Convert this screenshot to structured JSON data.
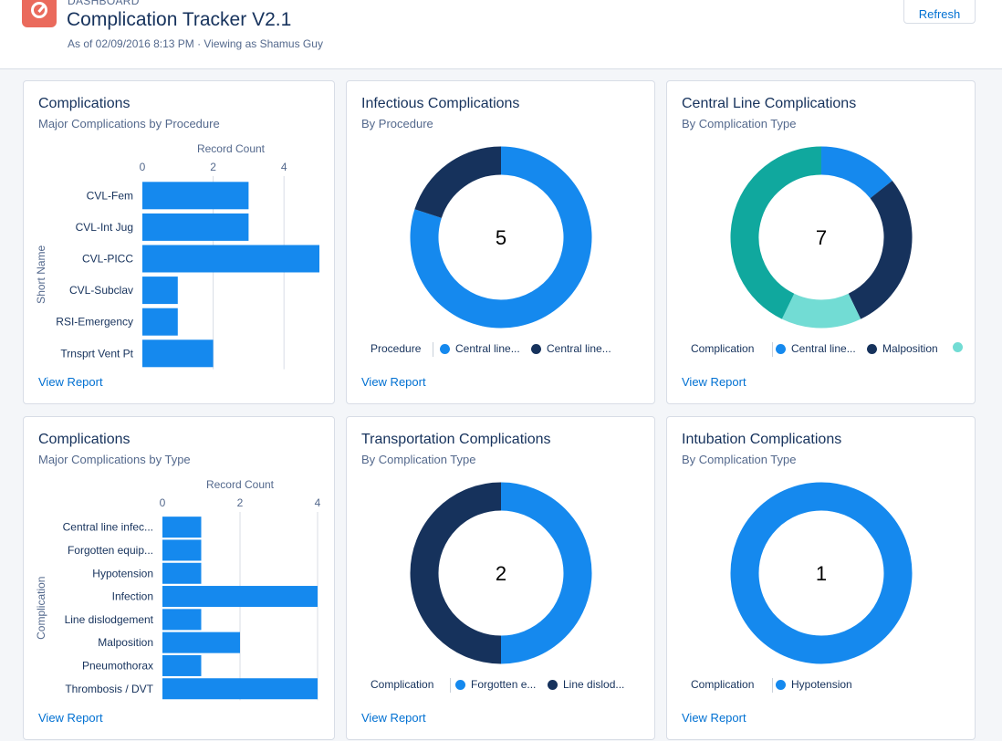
{
  "header": {
    "eyebrow": "DASHBOARD",
    "title": "Complication Tracker V2.1",
    "subtitle": "As of 02/09/2016 8:13 PM · Viewing as Shamus Guy",
    "refresh_label": "Refresh",
    "icon": "speedometer-icon"
  },
  "colors": {
    "primary_blue": "#1589ee",
    "navy": "#16325c",
    "teal": "#10a89e",
    "light_teal": "#72dcd4",
    "app_icon": "#ea6a5c"
  },
  "view_report_label": "View Report",
  "cards": [
    {
      "title": "Complications",
      "subtitle": "Major Complications by Procedure",
      "chart_data": {
        "type": "bar",
        "orientation": "horizontal",
        "xlabel": "Record Count",
        "ylabel": "Short Name",
        "x_ticks": [
          "0",
          "2",
          "4"
        ],
        "xlim": [
          0,
          5
        ],
        "categories": [
          "CVL-Fem",
          "CVL-Int Jug",
          "CVL-PICC",
          "CVL-Subclav",
          "RSI-Emergency",
          "Trnsprt Vent Pt"
        ],
        "values": [
          3,
          3,
          5,
          1,
          1,
          2
        ]
      }
    },
    {
      "title": "Infectious Complications",
      "subtitle": "By Procedure",
      "chart_data": {
        "type": "donut",
        "total": "5",
        "legend_title": "Procedure",
        "series": [
          {
            "name": "Central line...",
            "value": 4,
            "color": "#1589ee"
          },
          {
            "name": "Central line...",
            "value": 1,
            "color": "#16325c"
          }
        ]
      }
    },
    {
      "title": "Central Line Complications",
      "subtitle": "By Complication Type",
      "chart_data": {
        "type": "donut",
        "total": "7",
        "legend_title": "Complication",
        "series": [
          {
            "name": "Central line...",
            "value": 1,
            "color": "#1589ee"
          },
          {
            "name": "Malposition",
            "value": 2,
            "color": "#16325c"
          },
          {
            "name": "",
            "value": 1,
            "color": "#72dcd4"
          },
          {
            "name": "",
            "value": 3,
            "color": "#10a89e"
          }
        ]
      }
    },
    {
      "title": "Complications",
      "subtitle": "Major Complications by Type",
      "chart_data": {
        "type": "bar",
        "orientation": "horizontal",
        "xlabel": "Record Count",
        "ylabel": "Complication",
        "x_ticks": [
          "0",
          "2",
          "4"
        ],
        "xlim": [
          0,
          4
        ],
        "categories": [
          "Central line infec...",
          "Forgotten equip...",
          "Hypotension",
          "Infection",
          "Line dislodgement",
          "Malposition",
          "Pneumothorax",
          "Thrombosis / DVT"
        ],
        "values": [
          1,
          1,
          1,
          4,
          1,
          2,
          1,
          4
        ]
      }
    },
    {
      "title": "Transportation Complications",
      "subtitle": "By Complication Type",
      "chart_data": {
        "type": "donut",
        "total": "2",
        "legend_title": "Complication",
        "series": [
          {
            "name": "Forgotten e...",
            "value": 1,
            "color": "#1589ee"
          },
          {
            "name": "Line dislod...",
            "value": 1,
            "color": "#16325c"
          }
        ]
      }
    },
    {
      "title": "Intubation Complications",
      "subtitle": "By Complication Type",
      "chart_data": {
        "type": "donut",
        "total": "1",
        "legend_title": "Complication",
        "series": [
          {
            "name": "Hypotension",
            "value": 1,
            "color": "#1589ee"
          }
        ]
      }
    }
  ]
}
